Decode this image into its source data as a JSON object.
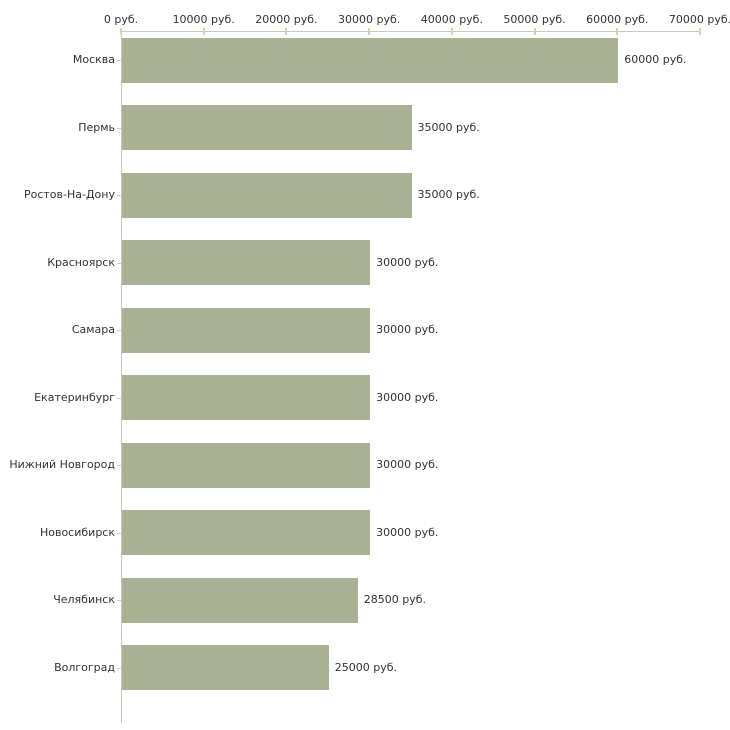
{
  "chart_data": {
    "type": "bar",
    "orientation": "horizontal",
    "title": "",
    "categories": [
      "Москва",
      "Пермь",
      "Ростов-На-Дону",
      "Красноярск",
      "Самара",
      "Екатеринбург",
      "Нижний Новгород",
      "Новосибирск",
      "Челябинск",
      "Волгоград"
    ],
    "values": [
      60000,
      35000,
      35000,
      30000,
      30000,
      30000,
      30000,
      30000,
      28500,
      25000
    ],
    "value_labels": [
      "60000 руб.",
      "35000 руб.",
      "35000 руб.",
      "30000 руб.",
      "30000 руб.",
      "30000 руб.",
      "30000 руб.",
      "30000 руб.",
      "28500 руб.",
      "25000 руб."
    ],
    "x_axis": {
      "position": "top",
      "min": 0,
      "max": 70000,
      "tick_values": [
        0,
        10000,
        20000,
        30000,
        40000,
        50000,
        60000,
        70000
      ],
      "tick_labels": [
        "0 руб.",
        "10000 руб.",
        "20000 руб.",
        "30000 руб.",
        "40000 руб.",
        "50000 руб.",
        "60000 руб.",
        "70000 руб."
      ]
    },
    "legend": "none",
    "grid": "off",
    "colors": {
      "bar": "#a9b194",
      "axis_line": "#c9c9bf",
      "axis_tick": "#d4d6a8",
      "category_tick": "#ccccbb",
      "text": "#333333",
      "background": "#ffffff"
    }
  }
}
